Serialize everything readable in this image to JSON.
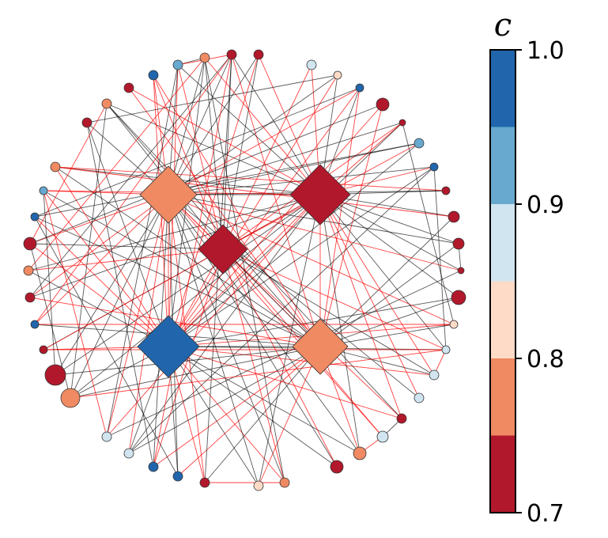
{
  "colorbar": {
    "title": "c",
    "range": [
      0.7,
      1.0
    ],
    "bins": [
      {
        "from": 0.7,
        "to": 0.75,
        "color": "#b2182b"
      },
      {
        "from": 0.75,
        "to": 0.8,
        "color": "#ef8a62"
      },
      {
        "from": 0.8,
        "to": 0.85,
        "color": "#fddbc7"
      },
      {
        "from": 0.85,
        "to": 0.9,
        "color": "#d1e5f0"
      },
      {
        "from": 0.9,
        "to": 0.95,
        "color": "#67a9cf"
      },
      {
        "from": 0.95,
        "to": 1.0,
        "color": "#2166ac"
      }
    ],
    "ticks": [
      {
        "value": 1.0,
        "label": "1.0"
      },
      {
        "value": 0.9,
        "label": "0.9"
      },
      {
        "value": 0.8,
        "label": "0.8"
      },
      {
        "value": 0.7,
        "label": "0.7"
      }
    ]
  },
  "edge_colors": {
    "black": "#000000",
    "red": "#ff0000"
  },
  "network": {
    "hubs": [
      {
        "id": "H1",
        "c": 0.77
      },
      {
        "id": "H2",
        "c": 0.72
      },
      {
        "id": "H3",
        "c": 0.72
      },
      {
        "id": "H4",
        "c": 0.98
      },
      {
        "id": "H5",
        "c": 0.77
      }
    ],
    "ring": [
      {
        "id": "R1",
        "c": 0.72
      },
      {
        "id": "R2",
        "c": 0.72
      },
      {
        "id": "R3",
        "c": 0.87
      },
      {
        "id": "R4",
        "c": 0.82
      },
      {
        "id": "R5",
        "c": 0.98
      },
      {
        "id": "R6",
        "c": 0.72
      },
      {
        "id": "R7",
        "c": 0.72
      },
      {
        "id": "R8",
        "c": 0.92
      },
      {
        "id": "R9",
        "c": 0.98
      },
      {
        "id": "R10",
        "c": 0.72
      },
      {
        "id": "R11",
        "c": 0.72
      },
      {
        "id": "R12",
        "c": 0.72
      },
      {
        "id": "R13",
        "c": 0.72
      },
      {
        "id": "R14",
        "c": 0.72
      },
      {
        "id": "R15",
        "c": 0.82
      },
      {
        "id": "R16",
        "c": 0.87
      },
      {
        "id": "R17",
        "c": 0.87
      },
      {
        "id": "R18",
        "c": 0.87
      },
      {
        "id": "R19",
        "c": 0.72
      },
      {
        "id": "R20",
        "c": 0.87
      },
      {
        "id": "R21",
        "c": 0.77
      },
      {
        "id": "R22",
        "c": 0.72
      },
      {
        "id": "R23",
        "c": 0.77
      },
      {
        "id": "R24",
        "c": 0.82
      },
      {
        "id": "R25",
        "c": 0.72
      },
      {
        "id": "R26",
        "c": 0.98
      },
      {
        "id": "R27",
        "c": 0.98
      },
      {
        "id": "R28",
        "c": 0.87
      },
      {
        "id": "R29",
        "c": 0.87
      },
      {
        "id": "R30",
        "c": 0.77
      },
      {
        "id": "R31",
        "c": 0.72
      },
      {
        "id": "R32",
        "c": 0.72
      },
      {
        "id": "R33",
        "c": 0.98
      },
      {
        "id": "R34",
        "c": 0.72
      },
      {
        "id": "R35",
        "c": 0.77
      },
      {
        "id": "R36",
        "c": 0.72
      },
      {
        "id": "R37",
        "c": 0.98
      },
      {
        "id": "R38",
        "c": 0.92
      },
      {
        "id": "R39",
        "c": 0.77
      },
      {
        "id": "R40",
        "c": 0.72
      }
    ]
  }
}
